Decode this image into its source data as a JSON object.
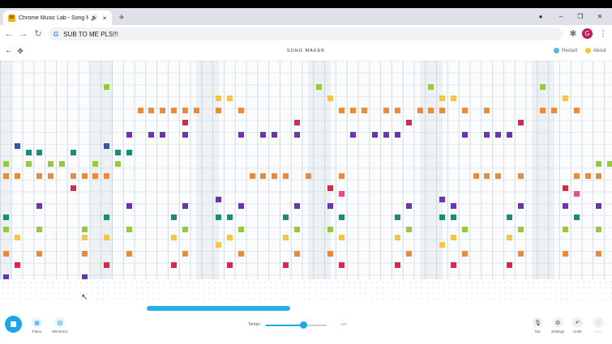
{
  "browser": {
    "tab_title": "Chrome Music Lab - Song M",
    "tab_favicon": "M",
    "audio_icon": "speaker-icon",
    "close_glyph": "×",
    "new_tab_glyph": "+",
    "window_controls": {
      "minimize": "–",
      "maximize": "❐",
      "close": "✕"
    },
    "back_glyph": "←",
    "forward_glyph": "→",
    "reload_glyph": "↻",
    "omnibox_prefix": "G",
    "omnibox_text": "SUB TO ME PLS!!!",
    "profile_initial": "G",
    "extension_glyph": "✱",
    "menu_glyph": "⋮",
    "record_glyph": "●"
  },
  "app": {
    "title": "SONG MAKER",
    "back_glyph": "←",
    "move_glyph": "✥",
    "restart_label": "Restart",
    "about_label": "About",
    "colors": {
      "accent": "#1ea5e8",
      "restart_dot": "#5bb3e6",
      "about_dot": "#f7c633"
    }
  },
  "toolbar": {
    "instruments": [
      {
        "label": "Piano",
        "icon": "piano-icon"
      },
      {
        "label": "Electronic",
        "icon": "keyboard-icon"
      }
    ],
    "tempo_label": "Tempo",
    "tempo_value": "120",
    "tempo_fraction": 0.62,
    "right_tools": [
      {
        "label": "Mic",
        "icon": "mic-icon",
        "glyph": "🎙"
      },
      {
        "label": "Settings",
        "icon": "gear-icon",
        "glyph": "⚙"
      },
      {
        "label": "Undo",
        "icon": "undo-icon",
        "glyph": "↶"
      },
      {
        "label": "Save",
        "icon": "check-icon",
        "glyph": "✓"
      }
    ]
  },
  "note_colors": {
    "red": "#d32b4b",
    "orange": "#e88b3b",
    "yellow": "#f2c64d",
    "lime": "#96c93d",
    "teal": "#1f8b76",
    "blue": "#33589e",
    "purple": "#6a35ad",
    "magenta": "#c847a8",
    "pink": "#e2508a"
  },
  "notes": [
    {
      "col": 9,
      "row": 1,
      "c": "lime"
    },
    {
      "col": 28,
      "row": 1,
      "c": "lime"
    },
    {
      "col": 38,
      "row": 1,
      "c": "lime"
    },
    {
      "col": 48,
      "row": 1,
      "c": "lime"
    },
    {
      "col": 19,
      "row": 2,
      "c": "yellow"
    },
    {
      "col": 20,
      "row": 2,
      "c": "yellow"
    },
    {
      "col": 29,
      "row": 2,
      "c": "yellow"
    },
    {
      "col": 39,
      "row": 2,
      "c": "yellow"
    },
    {
      "col": 40,
      "row": 2,
      "c": "yellow"
    },
    {
      "col": 50,
      "row": 2,
      "c": "yellow"
    },
    {
      "col": 12,
      "row": 3,
      "c": "orange"
    },
    {
      "col": 13,
      "row": 3,
      "c": "orange"
    },
    {
      "col": 14,
      "row": 3,
      "c": "orange"
    },
    {
      "col": 15,
      "row": 3,
      "c": "orange"
    },
    {
      "col": 16,
      "row": 3,
      "c": "orange"
    },
    {
      "col": 17,
      "row": 3,
      "c": "orange"
    },
    {
      "col": 19,
      "row": 3,
      "c": "orange"
    },
    {
      "col": 21,
      "row": 3,
      "c": "orange"
    },
    {
      "col": 30,
      "row": 3,
      "c": "orange"
    },
    {
      "col": 31,
      "row": 3,
      "c": "orange"
    },
    {
      "col": 32,
      "row": 3,
      "c": "orange"
    },
    {
      "col": 34,
      "row": 3,
      "c": "orange"
    },
    {
      "col": 35,
      "row": 3,
      "c": "orange"
    },
    {
      "col": 37,
      "row": 3,
      "c": "orange"
    },
    {
      "col": 38,
      "row": 3,
      "c": "orange"
    },
    {
      "col": 39,
      "row": 3,
      "c": "orange"
    },
    {
      "col": 41,
      "row": 3,
      "c": "orange"
    },
    {
      "col": 43,
      "row": 3,
      "c": "orange"
    },
    {
      "col": 48,
      "row": 3,
      "c": "orange"
    },
    {
      "col": 49,
      "row": 3,
      "c": "orange"
    },
    {
      "col": 51,
      "row": 3,
      "c": "orange"
    },
    {
      "col": 16,
      "row": 4,
      "c": "red"
    },
    {
      "col": 26,
      "row": 4,
      "c": "red"
    },
    {
      "col": 36,
      "row": 4,
      "c": "red"
    },
    {
      "col": 46,
      "row": 4,
      "c": "red"
    },
    {
      "col": 11,
      "row": 5,
      "c": "purple"
    },
    {
      "col": 13,
      "row": 5,
      "c": "purple"
    },
    {
      "col": 14,
      "row": 5,
      "c": "purple"
    },
    {
      "col": 16,
      "row": 5,
      "c": "purple"
    },
    {
      "col": 21,
      "row": 5,
      "c": "purple"
    },
    {
      "col": 23,
      "row": 5,
      "c": "purple"
    },
    {
      "col": 24,
      "row": 5,
      "c": "purple"
    },
    {
      "col": 26,
      "row": 5,
      "c": "purple"
    },
    {
      "col": 31,
      "row": 5,
      "c": "purple"
    },
    {
      "col": 33,
      "row": 5,
      "c": "purple"
    },
    {
      "col": 34,
      "row": 5,
      "c": "purple"
    },
    {
      "col": 35,
      "row": 5,
      "c": "purple"
    },
    {
      "col": 41,
      "row": 5,
      "c": "purple"
    },
    {
      "col": 43,
      "row": 5,
      "c": "purple"
    },
    {
      "col": 44,
      "row": 5,
      "c": "purple"
    },
    {
      "col": 45,
      "row": 5,
      "c": "purple"
    },
    {
      "col": 1,
      "row": 6,
      "c": "blue"
    },
    {
      "col": 9,
      "row": 6,
      "c": "blue"
    },
    {
      "col": 2,
      "row": 6.5,
      "c": "teal"
    },
    {
      "col": 3,
      "row": 6.5,
      "c": "teal"
    },
    {
      "col": 6,
      "row": 6.5,
      "c": "teal"
    },
    {
      "col": 10,
      "row": 6.5,
      "c": "teal"
    },
    {
      "col": 11,
      "row": 6.5,
      "c": "teal"
    },
    {
      "col": 0,
      "row": 7.5,
      "c": "lime"
    },
    {
      "col": 2,
      "row": 7.5,
      "c": "lime"
    },
    {
      "col": 4,
      "row": 7.5,
      "c": "lime"
    },
    {
      "col": 5,
      "row": 7.5,
      "c": "lime"
    },
    {
      "col": 8,
      "row": 7.5,
      "c": "lime"
    },
    {
      "col": 10,
      "row": 7.5,
      "c": "lime"
    },
    {
      "col": 53,
      "row": 7.5,
      "c": "lime"
    },
    {
      "col": 54,
      "row": 7.5,
      "c": "lime"
    },
    {
      "col": 0,
      "row": 8.5,
      "c": "orange"
    },
    {
      "col": 1,
      "row": 8.5,
      "c": "orange"
    },
    {
      "col": 3,
      "row": 8.5,
      "c": "orange"
    },
    {
      "col": 4,
      "row": 8.5,
      "c": "orange"
    },
    {
      "col": 6,
      "row": 8.5,
      "c": "orange"
    },
    {
      "col": 7,
      "row": 8.5,
      "c": "orange"
    },
    {
      "col": 8,
      "row": 8.5,
      "c": "orange"
    },
    {
      "col": 9,
      "row": 8.5,
      "c": "orange"
    },
    {
      "col": 22,
      "row": 8.5,
      "c": "orange"
    },
    {
      "col": 23,
      "row": 8.5,
      "c": "orange"
    },
    {
      "col": 24,
      "row": 8.5,
      "c": "orange"
    },
    {
      "col": 25,
      "row": 8.5,
      "c": "orange"
    },
    {
      "col": 27,
      "row": 8.5,
      "c": "orange"
    },
    {
      "col": 30,
      "row": 8.5,
      "c": "orange"
    },
    {
      "col": 42,
      "row": 8.5,
      "c": "orange"
    },
    {
      "col": 43,
      "row": 8.5,
      "c": "orange"
    },
    {
      "col": 44,
      "row": 8.5,
      "c": "orange"
    },
    {
      "col": 46,
      "row": 8.5,
      "c": "orange"
    },
    {
      "col": 51,
      "row": 8.5,
      "c": "orange"
    },
    {
      "col": 52,
      "row": 8.5,
      "c": "orange"
    },
    {
      "col": 53,
      "row": 8.5,
      "c": "orange"
    },
    {
      "col": 6,
      "row": 9.5,
      "c": "red"
    },
    {
      "col": 29,
      "row": 9.5,
      "c": "red"
    },
    {
      "col": 50,
      "row": 9.5,
      "c": "red"
    },
    {
      "col": 30,
      "row": 10,
      "c": "pink"
    },
    {
      "col": 51,
      "row": 10,
      "c": "pink"
    },
    {
      "col": 19,
      "row": 10.5,
      "c": "purple"
    },
    {
      "col": 39,
      "row": 10.5,
      "c": "purple"
    },
    {
      "col": 3,
      "row": 11,
      "c": "purple"
    },
    {
      "col": 11,
      "row": 11,
      "c": "purple"
    },
    {
      "col": 16,
      "row": 11,
      "c": "purple"
    },
    {
      "col": 21,
      "row": 11,
      "c": "purple"
    },
    {
      "col": 26,
      "row": 11,
      "c": "purple"
    },
    {
      "col": 29,
      "row": 11,
      "c": "purple"
    },
    {
      "col": 36,
      "row": 11,
      "c": "purple"
    },
    {
      "col": 40,
      "row": 11,
      "c": "purple"
    },
    {
      "col": 46,
      "row": 11,
      "c": "purple"
    },
    {
      "col": 50,
      "row": 11,
      "c": "purple"
    },
    {
      "col": 53,
      "row": 11,
      "c": "purple"
    },
    {
      "col": 0,
      "row": 12,
      "c": "teal"
    },
    {
      "col": 9,
      "row": 12,
      "c": "teal"
    },
    {
      "col": 15,
      "row": 12,
      "c": "teal"
    },
    {
      "col": 19,
      "row": 12,
      "c": "teal"
    },
    {
      "col": 20,
      "row": 12,
      "c": "teal"
    },
    {
      "col": 25,
      "row": 12,
      "c": "teal"
    },
    {
      "col": 30,
      "row": 12,
      "c": "teal"
    },
    {
      "col": 35,
      "row": 12,
      "c": "teal"
    },
    {
      "col": 39,
      "row": 12,
      "c": "teal"
    },
    {
      "col": 40,
      "row": 12,
      "c": "teal"
    },
    {
      "col": 45,
      "row": 12,
      "c": "teal"
    },
    {
      "col": 51,
      "row": 12,
      "c": "teal"
    },
    {
      "col": 0,
      "row": 13,
      "c": "lime"
    },
    {
      "col": 3,
      "row": 13,
      "c": "lime"
    },
    {
      "col": 7,
      "row": 13,
      "c": "lime"
    },
    {
      "col": 11,
      "row": 13,
      "c": "lime"
    },
    {
      "col": 16,
      "row": 13,
      "c": "lime"
    },
    {
      "col": 21,
      "row": 13,
      "c": "lime"
    },
    {
      "col": 26,
      "row": 13,
      "c": "lime"
    },
    {
      "col": 29,
      "row": 13,
      "c": "lime"
    },
    {
      "col": 36,
      "row": 13,
      "c": "lime"
    },
    {
      "col": 41,
      "row": 13,
      "c": "lime"
    },
    {
      "col": 46,
      "row": 13,
      "c": "lime"
    },
    {
      "col": 50,
      "row": 13,
      "c": "lime"
    },
    {
      "col": 53,
      "row": 13,
      "c": "lime"
    },
    {
      "col": 1,
      "row": 13.7,
      "c": "yellow"
    },
    {
      "col": 7,
      "row": 13.7,
      "c": "yellow"
    },
    {
      "col": 9,
      "row": 13.7,
      "c": "yellow"
    },
    {
      "col": 15,
      "row": 13.7,
      "c": "yellow"
    },
    {
      "col": 20,
      "row": 13.7,
      "c": "yellow"
    },
    {
      "col": 25,
      "row": 13.7,
      "c": "yellow"
    },
    {
      "col": 30,
      "row": 13.7,
      "c": "yellow"
    },
    {
      "col": 35,
      "row": 13.7,
      "c": "yellow"
    },
    {
      "col": 40,
      "row": 13.7,
      "c": "yellow"
    },
    {
      "col": 45,
      "row": 13.7,
      "c": "yellow"
    },
    {
      "col": 19,
      "row": 14.3,
      "c": "yellow"
    },
    {
      "col": 39,
      "row": 14.3,
      "c": "yellow"
    },
    {
      "col": 0,
      "row": 15,
      "c": "orange"
    },
    {
      "col": 3,
      "row": 15,
      "c": "orange"
    },
    {
      "col": 7,
      "row": 15,
      "c": "orange"
    },
    {
      "col": 11,
      "row": 15,
      "c": "orange"
    },
    {
      "col": 16,
      "row": 15,
      "c": "orange"
    },
    {
      "col": 21,
      "row": 15,
      "c": "orange"
    },
    {
      "col": 26,
      "row": 15,
      "c": "orange"
    },
    {
      "col": 29,
      "row": 15,
      "c": "orange"
    },
    {
      "col": 36,
      "row": 15,
      "c": "orange"
    },
    {
      "col": 41,
      "row": 15,
      "c": "orange"
    },
    {
      "col": 46,
      "row": 15,
      "c": "orange"
    },
    {
      "col": 50,
      "row": 15,
      "c": "orange"
    },
    {
      "col": 53,
      "row": 15,
      "c": "orange"
    },
    {
      "col": 1,
      "row": 16,
      "c": "red"
    },
    {
      "col": 9,
      "row": 16,
      "c": "red"
    },
    {
      "col": 15,
      "row": 16,
      "c": "red"
    },
    {
      "col": 20,
      "row": 16,
      "c": "red"
    },
    {
      "col": 25,
      "row": 16,
      "c": "red"
    },
    {
      "col": 30,
      "row": 16,
      "c": "red"
    },
    {
      "col": 35,
      "row": 16,
      "c": "red"
    },
    {
      "col": 40,
      "row": 16,
      "c": "red"
    },
    {
      "col": 45,
      "row": 16,
      "c": "red"
    },
    {
      "col": 0,
      "row": 17,
      "c": "purple"
    },
    {
      "col": 7,
      "row": 17,
      "c": "purple"
    }
  ]
}
